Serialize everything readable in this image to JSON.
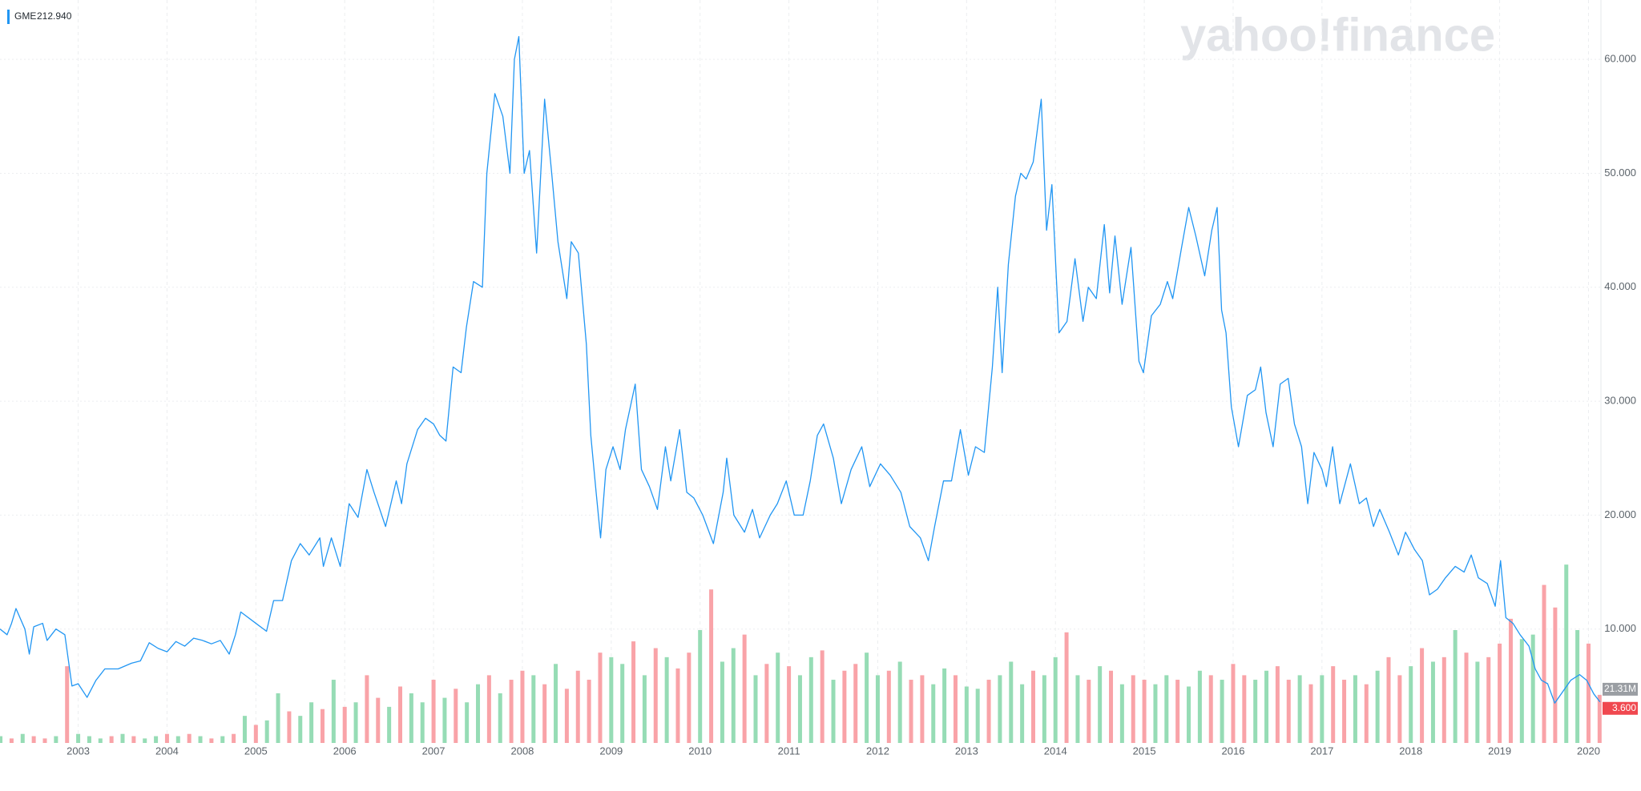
{
  "chart_data": {
    "type": "line",
    "watermark": "yahoo!finance",
    "legend_value": "212.940",
    "xlim": [
      2002.12,
      2020.14
    ],
    "xticks": [
      2003,
      2004,
      2005,
      2006,
      2007,
      2008,
      2009,
      2010,
      2011,
      2012,
      2013,
      2014,
      2015,
      2016,
      2017,
      2018,
      2019,
      2020
    ],
    "ylim": [
      0,
      65
    ],
    "yticks": [
      {
        "value": 10,
        "label": "10.000"
      },
      {
        "value": 20,
        "label": "20.000"
      },
      {
        "value": 30,
        "label": "30.000"
      },
      {
        "value": 40,
        "label": "40.000"
      },
      {
        "value": 50,
        "label": "50.000"
      },
      {
        "value": 60,
        "label": "60.000"
      }
    ],
    "y2lim": [
      0,
      328
    ],
    "grid": true,
    "series": [
      {
        "name": "GME",
        "type": "line",
        "color": "#2196f3",
        "last_label": "3.600",
        "last_label_color": "#f0484f",
        "x": [
          2002.12,
          2002.2,
          2002.25,
          2002.3,
          2002.4,
          2002.45,
          2002.5,
          2002.6,
          2002.65,
          2002.75,
          2002.85,
          2002.93,
          2003.0,
          2003.1,
          2003.2,
          2003.3,
          2003.45,
          2003.6,
          2003.7,
          2003.8,
          2003.9,
          2004.0,
          2004.1,
          2004.2,
          2004.3,
          2004.4,
          2004.5,
          2004.6,
          2004.7,
          2004.77,
          2004.83,
          2005.0,
          2005.12,
          2005.2,
          2005.3,
          2005.4,
          2005.5,
          2005.6,
          2005.72,
          2005.76,
          2005.85,
          2005.95,
          2006.05,
          2006.15,
          2006.25,
          2006.33,
          2006.46,
          2006.58,
          2006.64,
          2006.7,
          2006.82,
          2006.91,
          2007.0,
          2007.07,
          2007.14,
          2007.22,
          2007.31,
          2007.37,
          2007.45,
          2007.55,
          2007.6,
          2007.69,
          2007.78,
          2007.86,
          2007.91,
          2007.96,
          2008.02,
          2008.08,
          2008.16,
          2008.25,
          2008.33,
          2008.4,
          2008.5,
          2008.55,
          2008.63,
          2008.72,
          2008.77,
          2008.83,
          2008.88,
          2008.94,
          2009.02,
          2009.1,
          2009.16,
          2009.27,
          2009.34,
          2009.43,
          2009.52,
          2009.61,
          2009.67,
          2009.77,
          2009.85,
          2009.93,
          2010.03,
          2010.15,
          2010.26,
          2010.3,
          2010.38,
          2010.5,
          2010.59,
          2010.67,
          2010.79,
          2010.87,
          2010.97,
          2011.06,
          2011.16,
          2011.24,
          2011.32,
          2011.39,
          2011.5,
          2011.59,
          2011.7,
          2011.82,
          2011.91,
          2012.03,
          2012.14,
          2012.26,
          2012.36,
          2012.48,
          2012.57,
          2012.64,
          2012.74,
          2012.83,
          2012.93,
          2013.02,
          2013.1,
          2013.2,
          2013.29,
          2013.35,
          2013.4,
          2013.47,
          2013.55,
          2013.61,
          2013.67,
          2013.75,
          2013.84,
          2013.9,
          2013.96,
          2014.04,
          2014.13,
          2014.22,
          2014.31,
          2014.37,
          2014.46,
          2014.55,
          2014.61,
          2014.67,
          2014.75,
          2014.85,
          2014.94,
          2014.99,
          2015.08,
          2015.18,
          2015.26,
          2015.32,
          2015.42,
          2015.5,
          2015.58,
          2015.68,
          2015.76,
          2015.82,
          2015.87,
          2015.92,
          2015.98,
          2016.06,
          2016.16,
          2016.25,
          2016.31,
          2016.37,
          2016.45,
          2016.53,
          2016.62,
          2016.69,
          2016.77,
          2016.84,
          2016.91,
          2017.0,
          2017.05,
          2017.12,
          2017.2,
          2017.32,
          2017.42,
          2017.5,
          2017.58,
          2017.65,
          2017.76,
          2017.86,
          2017.94,
          2018.04,
          2018.13,
          2018.21,
          2018.3,
          2018.39,
          2018.5,
          2018.6,
          2018.68,
          2018.76,
          2018.86,
          2018.95,
          2019.01,
          2019.07,
          2019.15,
          2019.23,
          2019.33,
          2019.4,
          2019.47,
          2019.54,
          2019.62,
          2019.71,
          2019.8,
          2019.9,
          2019.98,
          2020.06,
          2020.13
        ],
        "values": [
          10,
          9.5,
          10.5,
          11.8,
          10,
          7.8,
          10.2,
          10.5,
          9,
          10,
          9.5,
          5,
          5.2,
          4,
          5.5,
          6.5,
          6.5,
          7,
          7.2,
          8.8,
          8.3,
          8,
          8.9,
          8.5,
          9.2,
          9,
          8.7,
          9,
          7.8,
          9.5,
          11.5,
          10.5,
          9.8,
          12.5,
          12.5,
          16,
          17.5,
          16.5,
          18,
          15.5,
          18,
          15.5,
          21,
          19.8,
          24,
          22,
          19,
          23,
          21,
          24.5,
          27.5,
          28.5,
          28,
          27,
          26.5,
          33,
          32.5,
          36.5,
          40.5,
          40,
          50,
          57,
          55,
          50,
          60,
          62,
          50,
          52,
          43,
          56.5,
          50,
          44,
          39,
          44,
          43,
          35,
          27,
          22,
          18,
          24,
          26,
          24,
          27.5,
          31.5,
          24,
          22.5,
          20.5,
          26,
          23,
          27.5,
          22,
          21.5,
          20,
          17.5,
          22,
          25,
          20,
          18.5,
          20.5,
          18,
          20,
          21,
          23,
          20,
          20,
          23,
          27,
          28,
          25,
          21,
          24,
          26,
          22.5,
          24.5,
          23.5,
          22,
          19,
          18,
          16,
          19,
          23,
          23,
          27.5,
          23.5,
          26,
          25.5,
          33,
          40,
          32.5,
          42,
          48,
          50,
          49.5,
          51,
          56.5,
          45,
          49,
          36,
          37,
          42.5,
          37,
          40,
          39,
          45.5,
          39.5,
          44.5,
          38.5,
          43.5,
          33.5,
          32.5,
          37.5,
          38.5,
          40.5,
          39,
          43.5,
          47,
          44.5,
          41,
          45,
          47,
          38,
          36,
          29.5,
          26,
          30.5,
          31,
          33,
          29,
          26,
          31.5,
          32,
          28,
          26,
          21,
          25.5,
          24,
          22.5,
          26,
          21,
          24.5,
          21,
          21.5,
          19,
          20.5,
          18.5,
          16.5,
          18.5,
          17,
          16,
          13,
          13.5,
          14.5,
          15.5,
          15,
          16.5,
          14.5,
          14,
          12,
          16,
          11,
          10.5,
          9.5,
          8.5,
          6.5,
          5.5,
          5.2,
          3.5,
          4.5,
          5.5,
          6,
          5.5,
          4.3,
          3.6
        ]
      },
      {
        "type": "bar",
        "axis": "y2",
        "last_label": "21.31M",
        "last_label_color": "#9a9ea3",
        "x": [
          2002.125,
          2002.25,
          2002.375,
          2002.5,
          2002.625,
          2002.75,
          2002.875,
          2003.0,
          2003.125,
          2003.25,
          2003.375,
          2003.5,
          2003.625,
          2003.75,
          2003.875,
          2004.0,
          2004.125,
          2004.25,
          2004.375,
          2004.5,
          2004.625,
          2004.75,
          2004.875,
          2005.0,
          2005.125,
          2005.25,
          2005.375,
          2005.5,
          2005.625,
          2005.75,
          2005.875,
          2006.0,
          2006.125,
          2006.25,
          2006.375,
          2006.5,
          2006.625,
          2006.75,
          2006.875,
          2007.0,
          2007.125,
          2007.25,
          2007.375,
          2007.5,
          2007.625,
          2007.75,
          2007.875,
          2008.0,
          2008.125,
          2008.25,
          2008.375,
          2008.5,
          2008.625,
          2008.75,
          2008.875,
          2009.0,
          2009.125,
          2009.25,
          2009.375,
          2009.5,
          2009.625,
          2009.75,
          2009.875,
          2010.0,
          2010.125,
          2010.25,
          2010.375,
          2010.5,
          2010.625,
          2010.75,
          2010.875,
          2011.0,
          2011.125,
          2011.25,
          2011.375,
          2011.5,
          2011.625,
          2011.75,
          2011.875,
          2012.0,
          2012.125,
          2012.25,
          2012.375,
          2012.5,
          2012.625,
          2012.75,
          2012.875,
          2013.0,
          2013.125,
          2013.25,
          2013.375,
          2013.5,
          2013.625,
          2013.75,
          2013.875,
          2014.0,
          2014.125,
          2014.25,
          2014.375,
          2014.5,
          2014.625,
          2014.75,
          2014.875,
          2015.0,
          2015.125,
          2015.25,
          2015.375,
          2015.5,
          2015.625,
          2015.75,
          2015.875,
          2016.0,
          2016.125,
          2016.25,
          2016.375,
          2016.5,
          2016.625,
          2016.75,
          2016.875,
          2017.0,
          2017.125,
          2017.25,
          2017.375,
          2017.5,
          2017.625,
          2017.75,
          2017.875,
          2018.0,
          2018.125,
          2018.25,
          2018.375,
          2018.5,
          2018.625,
          2018.75,
          2018.875,
          2019.0,
          2019.125,
          2019.25,
          2019.375,
          2019.5,
          2019.625,
          2019.75,
          2019.875,
          2020.0,
          2020.125
        ],
        "values": [
          3,
          2,
          4,
          3,
          2,
          3,
          34,
          4,
          3,
          2,
          3,
          4,
          3,
          2,
          3,
          4,
          3,
          4,
          3,
          2,
          3,
          4,
          12,
          8,
          10,
          22,
          14,
          12,
          18,
          15,
          28,
          16,
          18,
          30,
          20,
          16,
          25,
          22,
          18,
          28,
          20,
          24,
          18,
          26,
          30,
          22,
          28,
          32,
          30,
          26,
          35,
          24,
          32,
          28,
          40,
          38,
          35,
          45,
          30,
          42,
          38,
          33,
          40,
          50,
          68,
          36,
          42,
          48,
          30,
          35,
          40,
          34,
          30,
          38,
          41,
          28,
          32,
          35,
          40,
          30,
          32,
          36,
          28,
          30,
          26,
          33,
          30,
          25,
          24,
          28,
          30,
          36,
          26,
          32,
          30,
          38,
          49,
          30,
          28,
          34,
          32,
          26,
          30,
          28,
          26,
          30,
          28,
          25,
          32,
          30,
          28,
          35,
          30,
          28,
          32,
          34,
          28,
          30,
          26,
          30,
          34,
          28,
          30,
          26,
          32,
          38,
          30,
          34,
          42,
          36,
          38,
          50,
          40,
          36,
          38,
          44,
          55,
          46,
          48,
          70,
          60,
          79,
          50,
          44,
          21.31
        ],
        "colors": [
          "#96dcb5",
          "#f9a3a8",
          "#96dcb5",
          "#f9a3a8",
          "#f9a3a8",
          "#96dcb5",
          "#f9a3a8",
          "#96dcb5",
          "#96dcb5",
          "#96dcb5",
          "#f9a3a8",
          "#96dcb5",
          "#f9a3a8",
          "#96dcb5",
          "#96dcb5",
          "#f9a3a8",
          "#96dcb5",
          "#f9a3a8",
          "#96dcb5",
          "#f9a3a8",
          "#96dcb5",
          "#f9a3a8",
          "#96dcb5",
          "#f9a3a8",
          "#96dcb5",
          "#96dcb5",
          "#f9a3a8",
          "#96dcb5",
          "#96dcb5",
          "#f9a3a8",
          "#96dcb5",
          "#f9a3a8",
          "#96dcb5",
          "#f9a3a8",
          "#f9a3a8",
          "#96dcb5",
          "#f9a3a8",
          "#96dcb5",
          "#96dcb5",
          "#f9a3a8",
          "#96dcb5",
          "#f9a3a8",
          "#96dcb5",
          "#96dcb5",
          "#f9a3a8",
          "#96dcb5",
          "#f9a3a8",
          "#f9a3a8",
          "#96dcb5",
          "#f9a3a8",
          "#96dcb5",
          "#f9a3a8",
          "#f9a3a8",
          "#f9a3a8",
          "#f9a3a8",
          "#96dcb5",
          "#96dcb5",
          "#f9a3a8",
          "#96dcb5",
          "#f9a3a8",
          "#96dcb5",
          "#f9a3a8",
          "#f9a3a8",
          "#96dcb5",
          "#f9a3a8",
          "#96dcb5",
          "#96dcb5",
          "#f9a3a8",
          "#96dcb5",
          "#f9a3a8",
          "#96dcb5",
          "#f9a3a8",
          "#96dcb5",
          "#96dcb5",
          "#f9a3a8",
          "#96dcb5",
          "#f9a3a8",
          "#f9a3a8",
          "#96dcb5",
          "#96dcb5",
          "#f9a3a8",
          "#96dcb5",
          "#f9a3a8",
          "#f9a3a8",
          "#96dcb5",
          "#96dcb5",
          "#f9a3a8",
          "#96dcb5",
          "#96dcb5",
          "#f9a3a8",
          "#96dcb5",
          "#96dcb5",
          "#96dcb5",
          "#f9a3a8",
          "#96dcb5",
          "#96dcb5",
          "#f9a3a8",
          "#96dcb5",
          "#f9a3a8",
          "#96dcb5",
          "#f9a3a8",
          "#96dcb5",
          "#f9a3a8",
          "#f9a3a8",
          "#96dcb5",
          "#96dcb5",
          "#f9a3a8",
          "#96dcb5",
          "#96dcb5",
          "#f9a3a8",
          "#96dcb5",
          "#f9a3a8",
          "#f9a3a8",
          "#96dcb5",
          "#96dcb5",
          "#f9a3a8",
          "#f9a3a8",
          "#96dcb5",
          "#f9a3a8",
          "#96dcb5",
          "#f9a3a8",
          "#f9a3a8",
          "#96dcb5",
          "#f9a3a8",
          "#96dcb5",
          "#f9a3a8",
          "#f9a3a8",
          "#96dcb5",
          "#f9a3a8",
          "#96dcb5",
          "#f9a3a8",
          "#96dcb5",
          "#f9a3a8",
          "#96dcb5",
          "#f9a3a8",
          "#f9a3a8",
          "#f9a3a8",
          "#96dcb5",
          "#96dcb5",
          "#f9a3a8",
          "#f9a3a8",
          "#96dcb5",
          "#96dcb5",
          "#f9a3a8",
          "#f9a3a8"
        ]
      }
    ]
  }
}
